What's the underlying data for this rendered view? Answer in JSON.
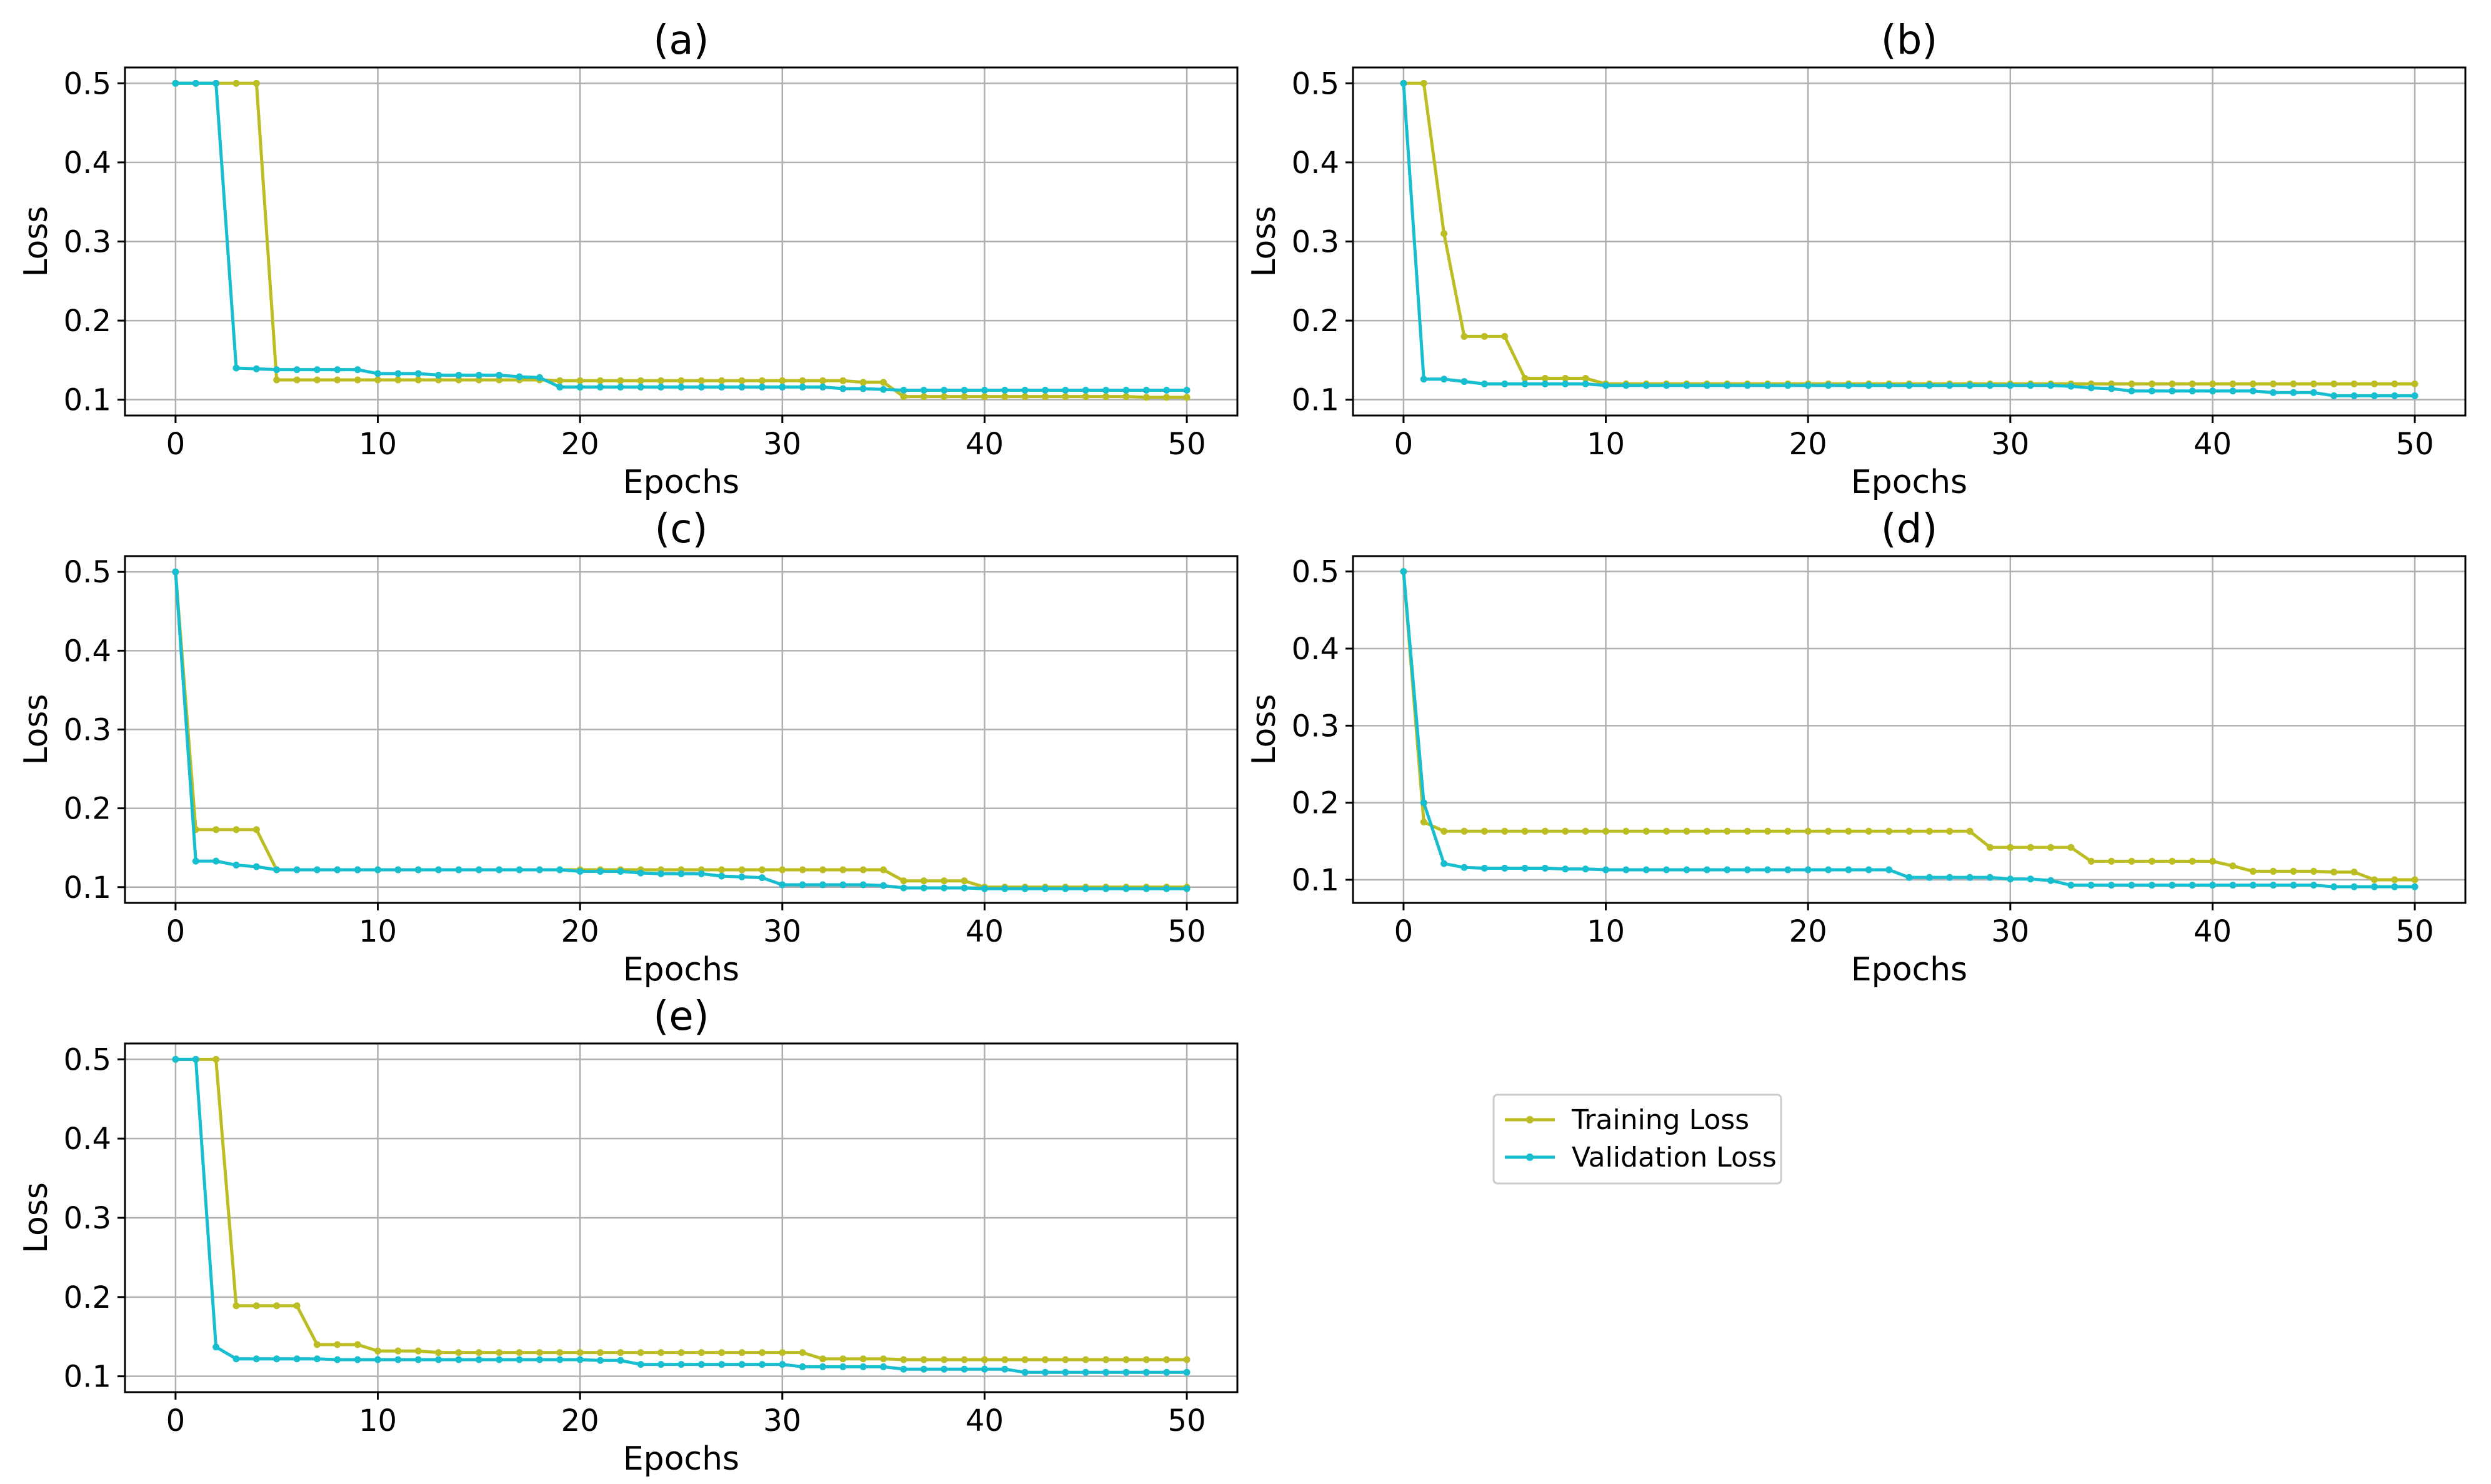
{
  "figure": {
    "legend": {
      "entries": [
        {
          "label": "Training Loss",
          "color": "#BCBD22"
        },
        {
          "label": "Validation Loss",
          "color": "#17BECF"
        }
      ]
    }
  },
  "chart_data": [
    {
      "type": "line",
      "title": "(a)",
      "xlabel": "Epochs",
      "ylabel": "Loss",
      "xlim": [
        -2.5,
        52.5
      ],
      "ylim": [
        0.08,
        0.52
      ],
      "xticks": [
        0,
        10,
        20,
        30,
        40,
        50
      ],
      "yticks": [
        0.1,
        0.2,
        0.3,
        0.4,
        0.5
      ],
      "ytick_labels": [
        "0.1",
        "0.2",
        "0.3",
        "0.4",
        "0.5"
      ],
      "grid": true,
      "x": [
        0,
        1,
        2,
        3,
        4,
        5,
        6,
        7,
        8,
        9,
        10,
        11,
        12,
        13,
        14,
        15,
        16,
        17,
        18,
        19,
        20,
        21,
        22,
        23,
        24,
        25,
        26,
        27,
        28,
        29,
        30,
        31,
        32,
        33,
        34,
        35,
        36,
        37,
        38,
        39,
        40,
        41,
        42,
        43,
        44,
        45,
        46,
        47,
        48,
        49,
        50
      ],
      "series": [
        {
          "name": "Training Loss",
          "color": "#BCBD22",
          "values": [
            0.5,
            0.5,
            0.5,
            0.5,
            0.5,
            0.125,
            0.125,
            0.125,
            0.125,
            0.125,
            0.125,
            0.125,
            0.125,
            0.125,
            0.125,
            0.125,
            0.125,
            0.125,
            0.125,
            0.124,
            0.124,
            0.124,
            0.124,
            0.124,
            0.124,
            0.124,
            0.124,
            0.124,
            0.124,
            0.124,
            0.124,
            0.124,
            0.124,
            0.124,
            0.122,
            0.122,
            0.104,
            0.104,
            0.104,
            0.104,
            0.104,
            0.104,
            0.104,
            0.104,
            0.104,
            0.104,
            0.104,
            0.104,
            0.103,
            0.103,
            0.103
          ]
        },
        {
          "name": "Validation Loss",
          "color": "#17BECF",
          "values": [
            0.5,
            0.5,
            0.5,
            0.14,
            0.139,
            0.138,
            0.138,
            0.138,
            0.138,
            0.138,
            0.133,
            0.133,
            0.133,
            0.131,
            0.131,
            0.131,
            0.131,
            0.129,
            0.128,
            0.116,
            0.116,
            0.116,
            0.116,
            0.116,
            0.116,
            0.116,
            0.116,
            0.116,
            0.116,
            0.116,
            0.116,
            0.116,
            0.116,
            0.114,
            0.114,
            0.113,
            0.112,
            0.112,
            0.112,
            0.112,
            0.112,
            0.112,
            0.112,
            0.112,
            0.112,
            0.112,
            0.112,
            0.112,
            0.112,
            0.112,
            0.112
          ]
        }
      ]
    },
    {
      "type": "line",
      "title": "(b)",
      "xlabel": "Epochs",
      "ylabel": "Loss",
      "xlim": [
        -2.5,
        52.5
      ],
      "ylim": [
        0.08,
        0.52
      ],
      "xticks": [
        0,
        10,
        20,
        30,
        40,
        50
      ],
      "yticks": [
        0.1,
        0.2,
        0.3,
        0.4,
        0.5
      ],
      "ytick_labels": [
        "0.1",
        "0.2",
        "0.3",
        "0.4",
        "0.5"
      ],
      "grid": true,
      "x": [
        0,
        1,
        2,
        3,
        4,
        5,
        6,
        7,
        8,
        9,
        10,
        11,
        12,
        13,
        14,
        15,
        16,
        17,
        18,
        19,
        20,
        21,
        22,
        23,
        24,
        25,
        26,
        27,
        28,
        29,
        30,
        31,
        32,
        33,
        34,
        35,
        36,
        37,
        38,
        39,
        40,
        41,
        42,
        43,
        44,
        45,
        46,
        47,
        48,
        49,
        50
      ],
      "series": [
        {
          "name": "Training Loss",
          "color": "#BCBD22",
          "values": [
            0.5,
            0.5,
            0.31,
            0.18,
            0.18,
            0.18,
            0.127,
            0.127,
            0.127,
            0.127,
            0.12,
            0.12,
            0.12,
            0.12,
            0.12,
            0.12,
            0.12,
            0.12,
            0.12,
            0.12,
            0.12,
            0.12,
            0.12,
            0.12,
            0.12,
            0.12,
            0.12,
            0.12,
            0.12,
            0.12,
            0.12,
            0.12,
            0.12,
            0.12,
            0.12,
            0.12,
            0.12,
            0.12,
            0.12,
            0.12,
            0.12,
            0.12,
            0.12,
            0.12,
            0.12,
            0.12,
            0.12,
            0.12,
            0.12,
            0.12,
            0.12
          ]
        },
        {
          "name": "Validation Loss",
          "color": "#17BECF",
          "values": [
            0.5,
            0.126,
            0.126,
            0.123,
            0.12,
            0.12,
            0.12,
            0.12,
            0.12,
            0.12,
            0.118,
            0.118,
            0.118,
            0.118,
            0.118,
            0.118,
            0.118,
            0.118,
            0.118,
            0.118,
            0.118,
            0.118,
            0.118,
            0.118,
            0.118,
            0.118,
            0.118,
            0.118,
            0.118,
            0.118,
            0.118,
            0.118,
            0.118,
            0.117,
            0.115,
            0.114,
            0.111,
            0.111,
            0.111,
            0.111,
            0.111,
            0.111,
            0.111,
            0.109,
            0.109,
            0.109,
            0.105,
            0.105,
            0.105,
            0.105,
            0.105
          ]
        }
      ]
    },
    {
      "type": "line",
      "title": "(c)",
      "xlabel": "Epochs",
      "ylabel": "Loss",
      "xlim": [
        -2.5,
        52.5
      ],
      "ylim": [
        0.08,
        0.52
      ],
      "xticks": [
        0,
        10,
        20,
        30,
        40,
        50
      ],
      "yticks": [
        0.1,
        0.2,
        0.3,
        0.4,
        0.5
      ],
      "ytick_labels": [
        "0.1",
        "0.2",
        "0.3",
        "0.4",
        "0.5"
      ],
      "grid": true,
      "x": [
        0,
        1,
        2,
        3,
        4,
        5,
        6,
        7,
        8,
        9,
        10,
        11,
        12,
        13,
        14,
        15,
        16,
        17,
        18,
        19,
        20,
        21,
        22,
        23,
        24,
        25,
        26,
        27,
        28,
        29,
        30,
        31,
        32,
        33,
        34,
        35,
        36,
        37,
        38,
        39,
        40,
        41,
        42,
        43,
        44,
        45,
        46,
        47,
        48,
        49,
        50
      ],
      "series": [
        {
          "name": "Training Loss",
          "color": "#BCBD22",
          "values": [
            0.5,
            0.173,
            0.173,
            0.173,
            0.173,
            0.122,
            0.122,
            0.122,
            0.122,
            0.122,
            0.122,
            0.122,
            0.122,
            0.122,
            0.122,
            0.122,
            0.122,
            0.122,
            0.122,
            0.122,
            0.122,
            0.122,
            0.122,
            0.122,
            0.122,
            0.122,
            0.122,
            0.122,
            0.122,
            0.122,
            0.122,
            0.122,
            0.122,
            0.122,
            0.122,
            0.122,
            0.108,
            0.108,
            0.108,
            0.108,
            0.1,
            0.1,
            0.1,
            0.1,
            0.1,
            0.1,
            0.1,
            0.1,
            0.1,
            0.1,
            0.1
          ]
        },
        {
          "name": "Validation Loss",
          "color": "#17BECF",
          "values": [
            0.5,
            0.133,
            0.133,
            0.128,
            0.126,
            0.122,
            0.122,
            0.122,
            0.122,
            0.122,
            0.122,
            0.122,
            0.122,
            0.122,
            0.122,
            0.122,
            0.122,
            0.122,
            0.122,
            0.122,
            0.12,
            0.12,
            0.12,
            0.118,
            0.117,
            0.117,
            0.117,
            0.114,
            0.113,
            0.112,
            0.103,
            0.103,
            0.103,
            0.103,
            0.103,
            0.102,
            0.099,
            0.099,
            0.099,
            0.099,
            0.098,
            0.098,
            0.098,
            0.098,
            0.098,
            0.098,
            0.098,
            0.098,
            0.098,
            0.098,
            0.098
          ]
        }
      ]
    },
    {
      "type": "line",
      "title": "(d)",
      "xlabel": "Epochs",
      "ylabel": "Loss",
      "xlim": [
        -2.5,
        52.5
      ],
      "ylim": [
        0.07,
        0.52
      ],
      "xticks": [
        0,
        10,
        20,
        30,
        40,
        50
      ],
      "yticks": [
        0.1,
        0.2,
        0.3,
        0.4,
        0.5
      ],
      "ytick_labels": [
        "0.1",
        "0.2",
        "0.3",
        "0.4",
        "0.5"
      ],
      "grid": true,
      "x": [
        0,
        1,
        2,
        3,
        4,
        5,
        6,
        7,
        8,
        9,
        10,
        11,
        12,
        13,
        14,
        15,
        16,
        17,
        18,
        19,
        20,
        21,
        22,
        23,
        24,
        25,
        26,
        27,
        28,
        29,
        30,
        31,
        32,
        33,
        34,
        35,
        36,
        37,
        38,
        39,
        40,
        41,
        42,
        43,
        44,
        45,
        46,
        47,
        48,
        49,
        50
      ],
      "series": [
        {
          "name": "Training Loss",
          "color": "#BCBD22",
          "values": [
            0.5,
            0.175,
            0.163,
            0.163,
            0.163,
            0.163,
            0.163,
            0.163,
            0.163,
            0.163,
            0.163,
            0.163,
            0.163,
            0.163,
            0.163,
            0.163,
            0.163,
            0.163,
            0.163,
            0.163,
            0.163,
            0.163,
            0.163,
            0.163,
            0.163,
            0.163,
            0.163,
            0.163,
            0.163,
            0.142,
            0.142,
            0.142,
            0.142,
            0.142,
            0.124,
            0.124,
            0.124,
            0.124,
            0.124,
            0.124,
            0.124,
            0.118,
            0.111,
            0.111,
            0.111,
            0.111,
            0.11,
            0.11,
            0.1,
            0.1,
            0.1
          ]
        },
        {
          "name": "Validation Loss",
          "color": "#17BECF",
          "values": [
            0.5,
            0.2,
            0.121,
            0.116,
            0.115,
            0.115,
            0.115,
            0.115,
            0.114,
            0.114,
            0.113,
            0.113,
            0.113,
            0.113,
            0.113,
            0.113,
            0.113,
            0.113,
            0.113,
            0.113,
            0.113,
            0.113,
            0.113,
            0.113,
            0.113,
            0.103,
            0.103,
            0.103,
            0.103,
            0.103,
            0.101,
            0.101,
            0.099,
            0.093,
            0.093,
            0.093,
            0.093,
            0.093,
            0.093,
            0.093,
            0.093,
            0.093,
            0.093,
            0.093,
            0.093,
            0.093,
            0.091,
            0.091,
            0.091,
            0.091,
            0.091
          ]
        }
      ]
    },
    {
      "type": "line",
      "title": "(e)",
      "xlabel": "Epochs",
      "ylabel": "Loss",
      "xlim": [
        -2.5,
        52.5
      ],
      "ylim": [
        0.08,
        0.52
      ],
      "xticks": [
        0,
        10,
        20,
        30,
        40,
        50
      ],
      "yticks": [
        0.1,
        0.2,
        0.3,
        0.4,
        0.5
      ],
      "ytick_labels": [
        "0.1",
        "0.2",
        "0.3",
        "0.4",
        "0.5"
      ],
      "grid": true,
      "x": [
        0,
        1,
        2,
        3,
        4,
        5,
        6,
        7,
        8,
        9,
        10,
        11,
        12,
        13,
        14,
        15,
        16,
        17,
        18,
        19,
        20,
        21,
        22,
        23,
        24,
        25,
        26,
        27,
        28,
        29,
        30,
        31,
        32,
        33,
        34,
        35,
        36,
        37,
        38,
        39,
        40,
        41,
        42,
        43,
        44,
        45,
        46,
        47,
        48,
        49,
        50
      ],
      "series": [
        {
          "name": "Training Loss",
          "color": "#BCBD22",
          "values": [
            0.5,
            0.5,
            0.5,
            0.189,
            0.189,
            0.189,
            0.189,
            0.14,
            0.14,
            0.14,
            0.132,
            0.132,
            0.132,
            0.13,
            0.13,
            0.13,
            0.13,
            0.13,
            0.13,
            0.13,
            0.13,
            0.13,
            0.13,
            0.13,
            0.13,
            0.13,
            0.13,
            0.13,
            0.13,
            0.13,
            0.13,
            0.13,
            0.122,
            0.122,
            0.122,
            0.122,
            0.121,
            0.121,
            0.121,
            0.121,
            0.121,
            0.121,
            0.121,
            0.121,
            0.121,
            0.121,
            0.121,
            0.121,
            0.121,
            0.121,
            0.121
          ]
        },
        {
          "name": "Validation Loss",
          "color": "#17BECF",
          "values": [
            0.5,
            0.5,
            0.137,
            0.122,
            0.122,
            0.122,
            0.122,
            0.122,
            0.121,
            0.121,
            0.121,
            0.121,
            0.121,
            0.121,
            0.121,
            0.121,
            0.121,
            0.121,
            0.121,
            0.121,
            0.121,
            0.12,
            0.12,
            0.115,
            0.115,
            0.115,
            0.115,
            0.115,
            0.115,
            0.115,
            0.115,
            0.112,
            0.112,
            0.112,
            0.112,
            0.112,
            0.109,
            0.109,
            0.109,
            0.109,
            0.109,
            0.109,
            0.105,
            0.105,
            0.105,
            0.105,
            0.105,
            0.105,
            0.105,
            0.105,
            0.105
          ]
        }
      ]
    }
  ]
}
